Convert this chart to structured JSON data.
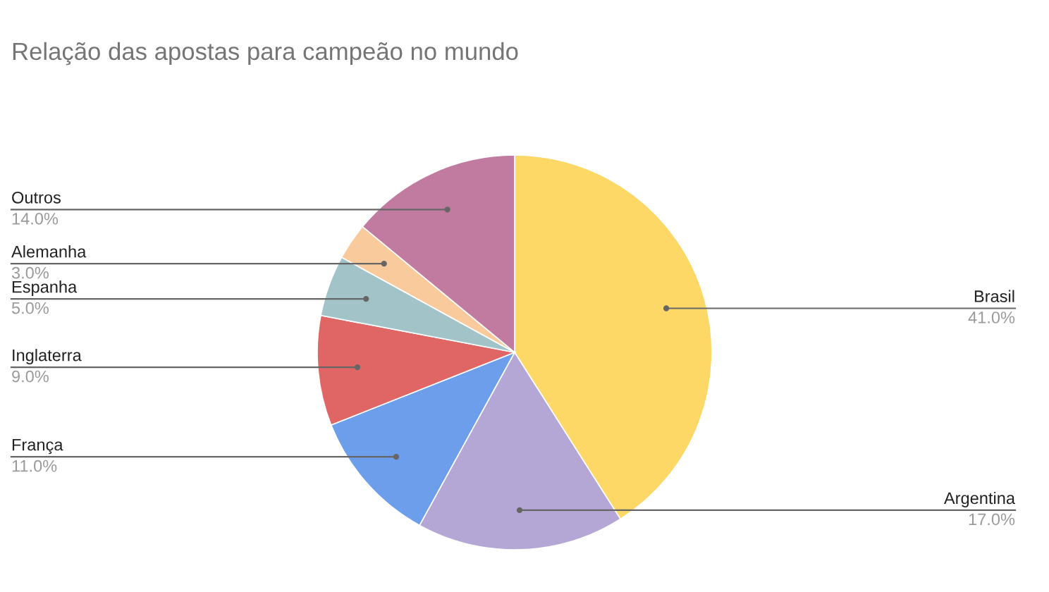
{
  "chart_data": {
    "type": "pie",
    "title": "Relação das apostas para campeão no mundo",
    "categories": [
      "Brasil",
      "Argentina",
      "França",
      "Inglaterra",
      "Espanha",
      "Alemanha",
      "Outros"
    ],
    "values": [
      41,
      17,
      11,
      9,
      5,
      3,
      14
    ],
    "colors": [
      "#fdd866",
      "#b4a7d6",
      "#6d9eeb",
      "#e06666",
      "#a2c4c9",
      "#f9cb9c",
      "#c27ba0"
    ],
    "value_labels": [
      "41.0%",
      "17.0%",
      "11.0%",
      "9.0%",
      "5.0%",
      "3.0%",
      "14.0%"
    ]
  }
}
